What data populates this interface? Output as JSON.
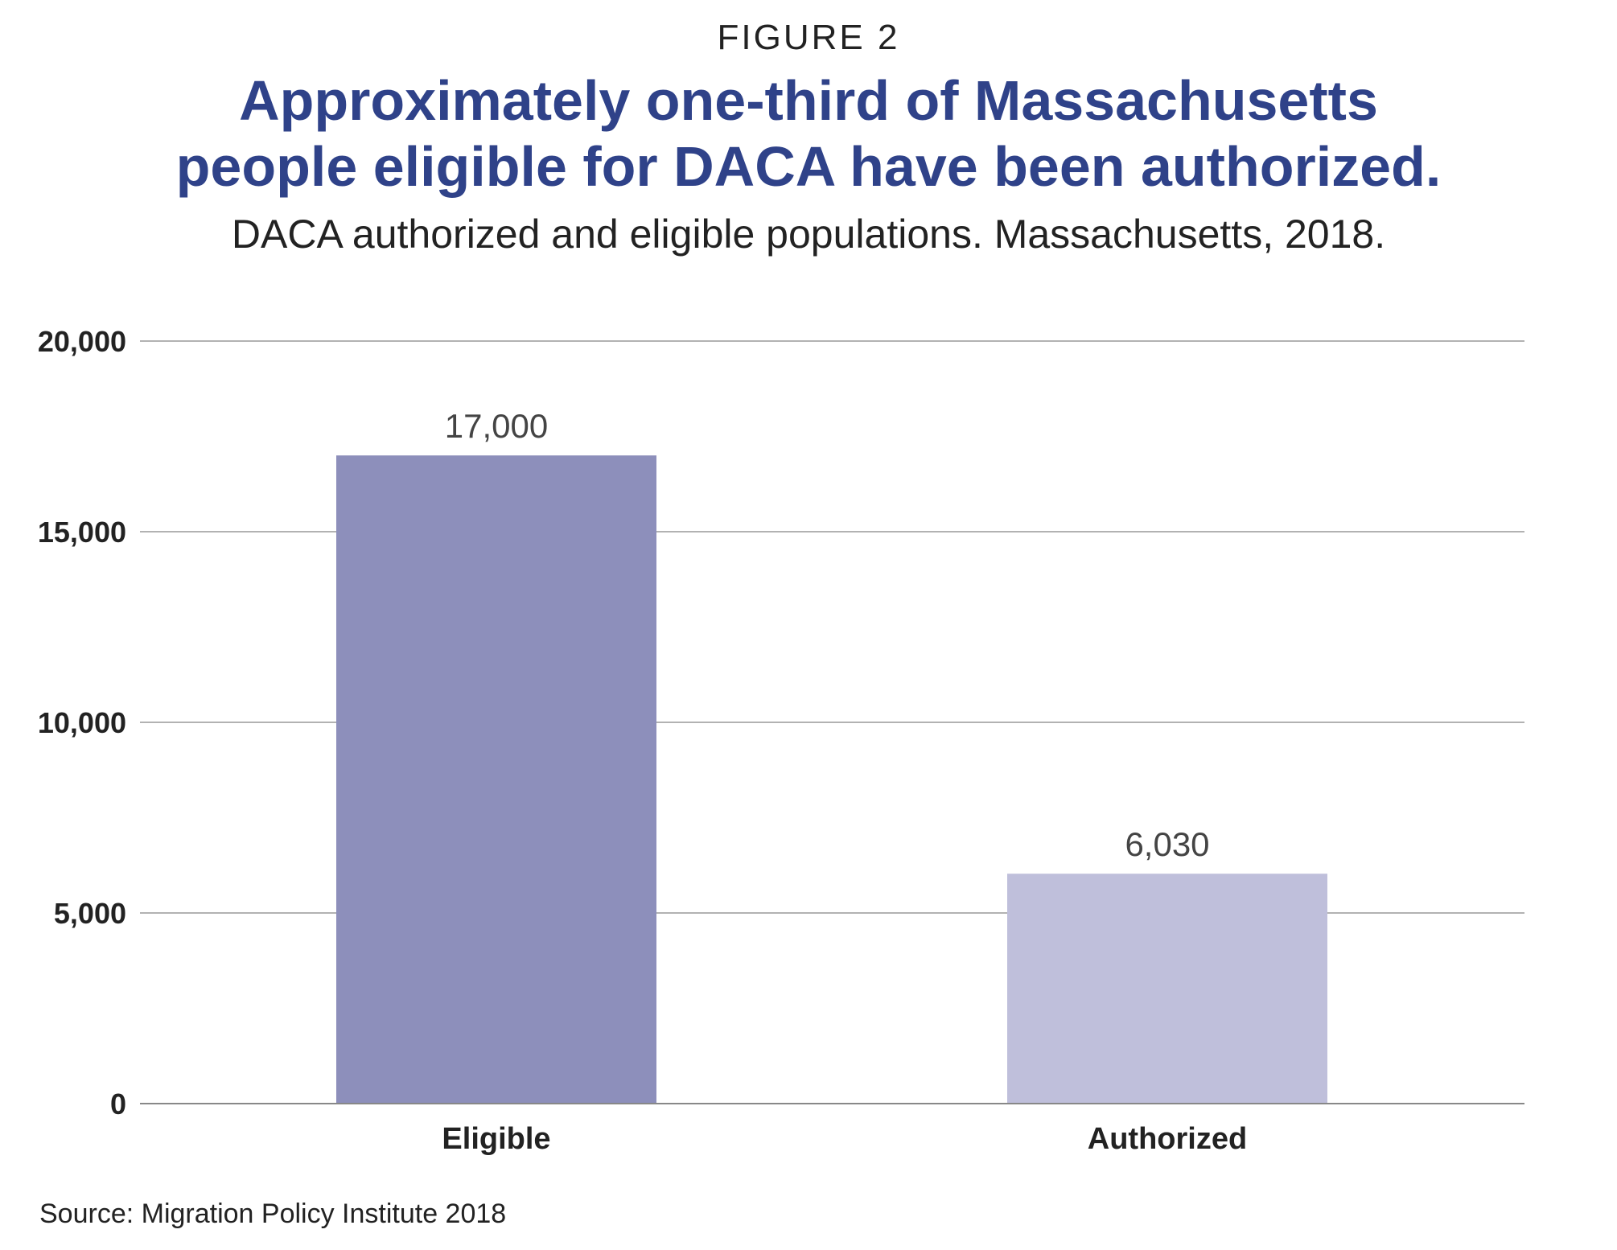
{
  "figure_label": "FIGURE 2",
  "chart_data": {
    "type": "bar",
    "title_lines": [
      "Approximately one-third of Massachusetts",
      "people eligible for DACA have been authorized."
    ],
    "subtitle": "DACA authorized and eligible populations. Massachusetts, 2018.",
    "categories": [
      "Eligible",
      "Authorized"
    ],
    "values": [
      17000,
      6030
    ],
    "data_labels": [
      "17,000",
      "6,030"
    ],
    "bar_colors": [
      "#8d8fbb",
      "#bfbfdb"
    ],
    "ylim": [
      0,
      20000
    ],
    "yticks": [
      0,
      5000,
      10000,
      15000,
      20000
    ],
    "ytick_labels": [
      "0",
      "5,000",
      "10,000",
      "15,000",
      "20,000"
    ],
    "grid": true,
    "xlabel": "",
    "ylabel": ""
  },
  "source": "Source: Migration Policy Institute 2018"
}
